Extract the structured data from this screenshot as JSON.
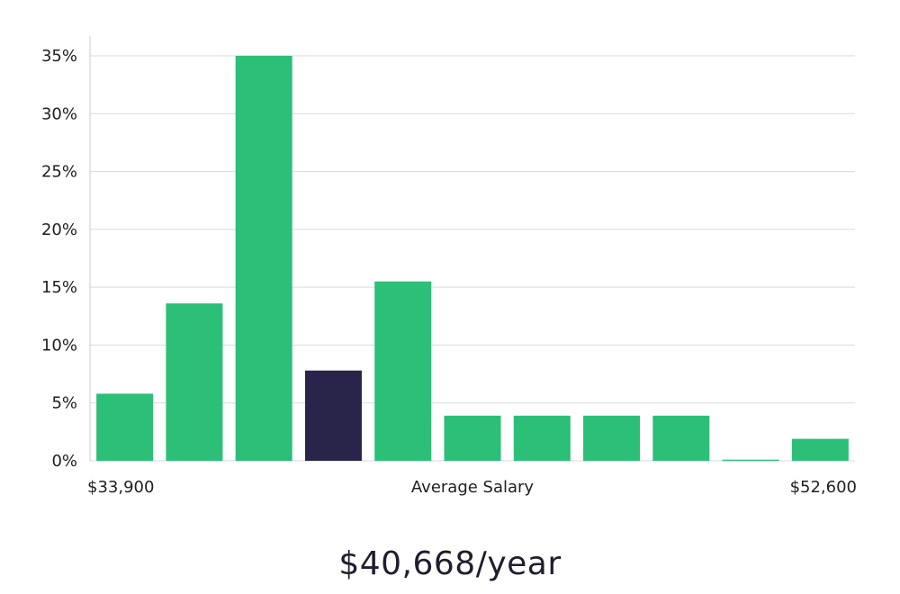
{
  "chart_data": {
    "type": "bar",
    "title": "",
    "xlabel": "Average Salary",
    "ylabel": "",
    "x_min_label": "$33,900",
    "x_max_label": "$52,600",
    "ylim": [
      0,
      35
    ],
    "yticks": [
      0,
      5,
      10,
      15,
      20,
      25,
      30,
      35
    ],
    "ytick_labels": [
      "0%",
      "5%",
      "10%",
      "15%",
      "20%",
      "25%",
      "30%",
      "35%"
    ],
    "values": [
      5.8,
      13.6,
      35,
      7.8,
      15.5,
      3.9,
      3.9,
      3.9,
      3.9,
      0.1,
      1.9
    ],
    "highlight_index": 3,
    "grid": true,
    "colors": {
      "bar": "#2bbf78",
      "highlight": "#29244a",
      "grid": "#d9d9d9",
      "axis": "#cccccc"
    }
  },
  "salary": {
    "value_text": "$40,668/year"
  }
}
